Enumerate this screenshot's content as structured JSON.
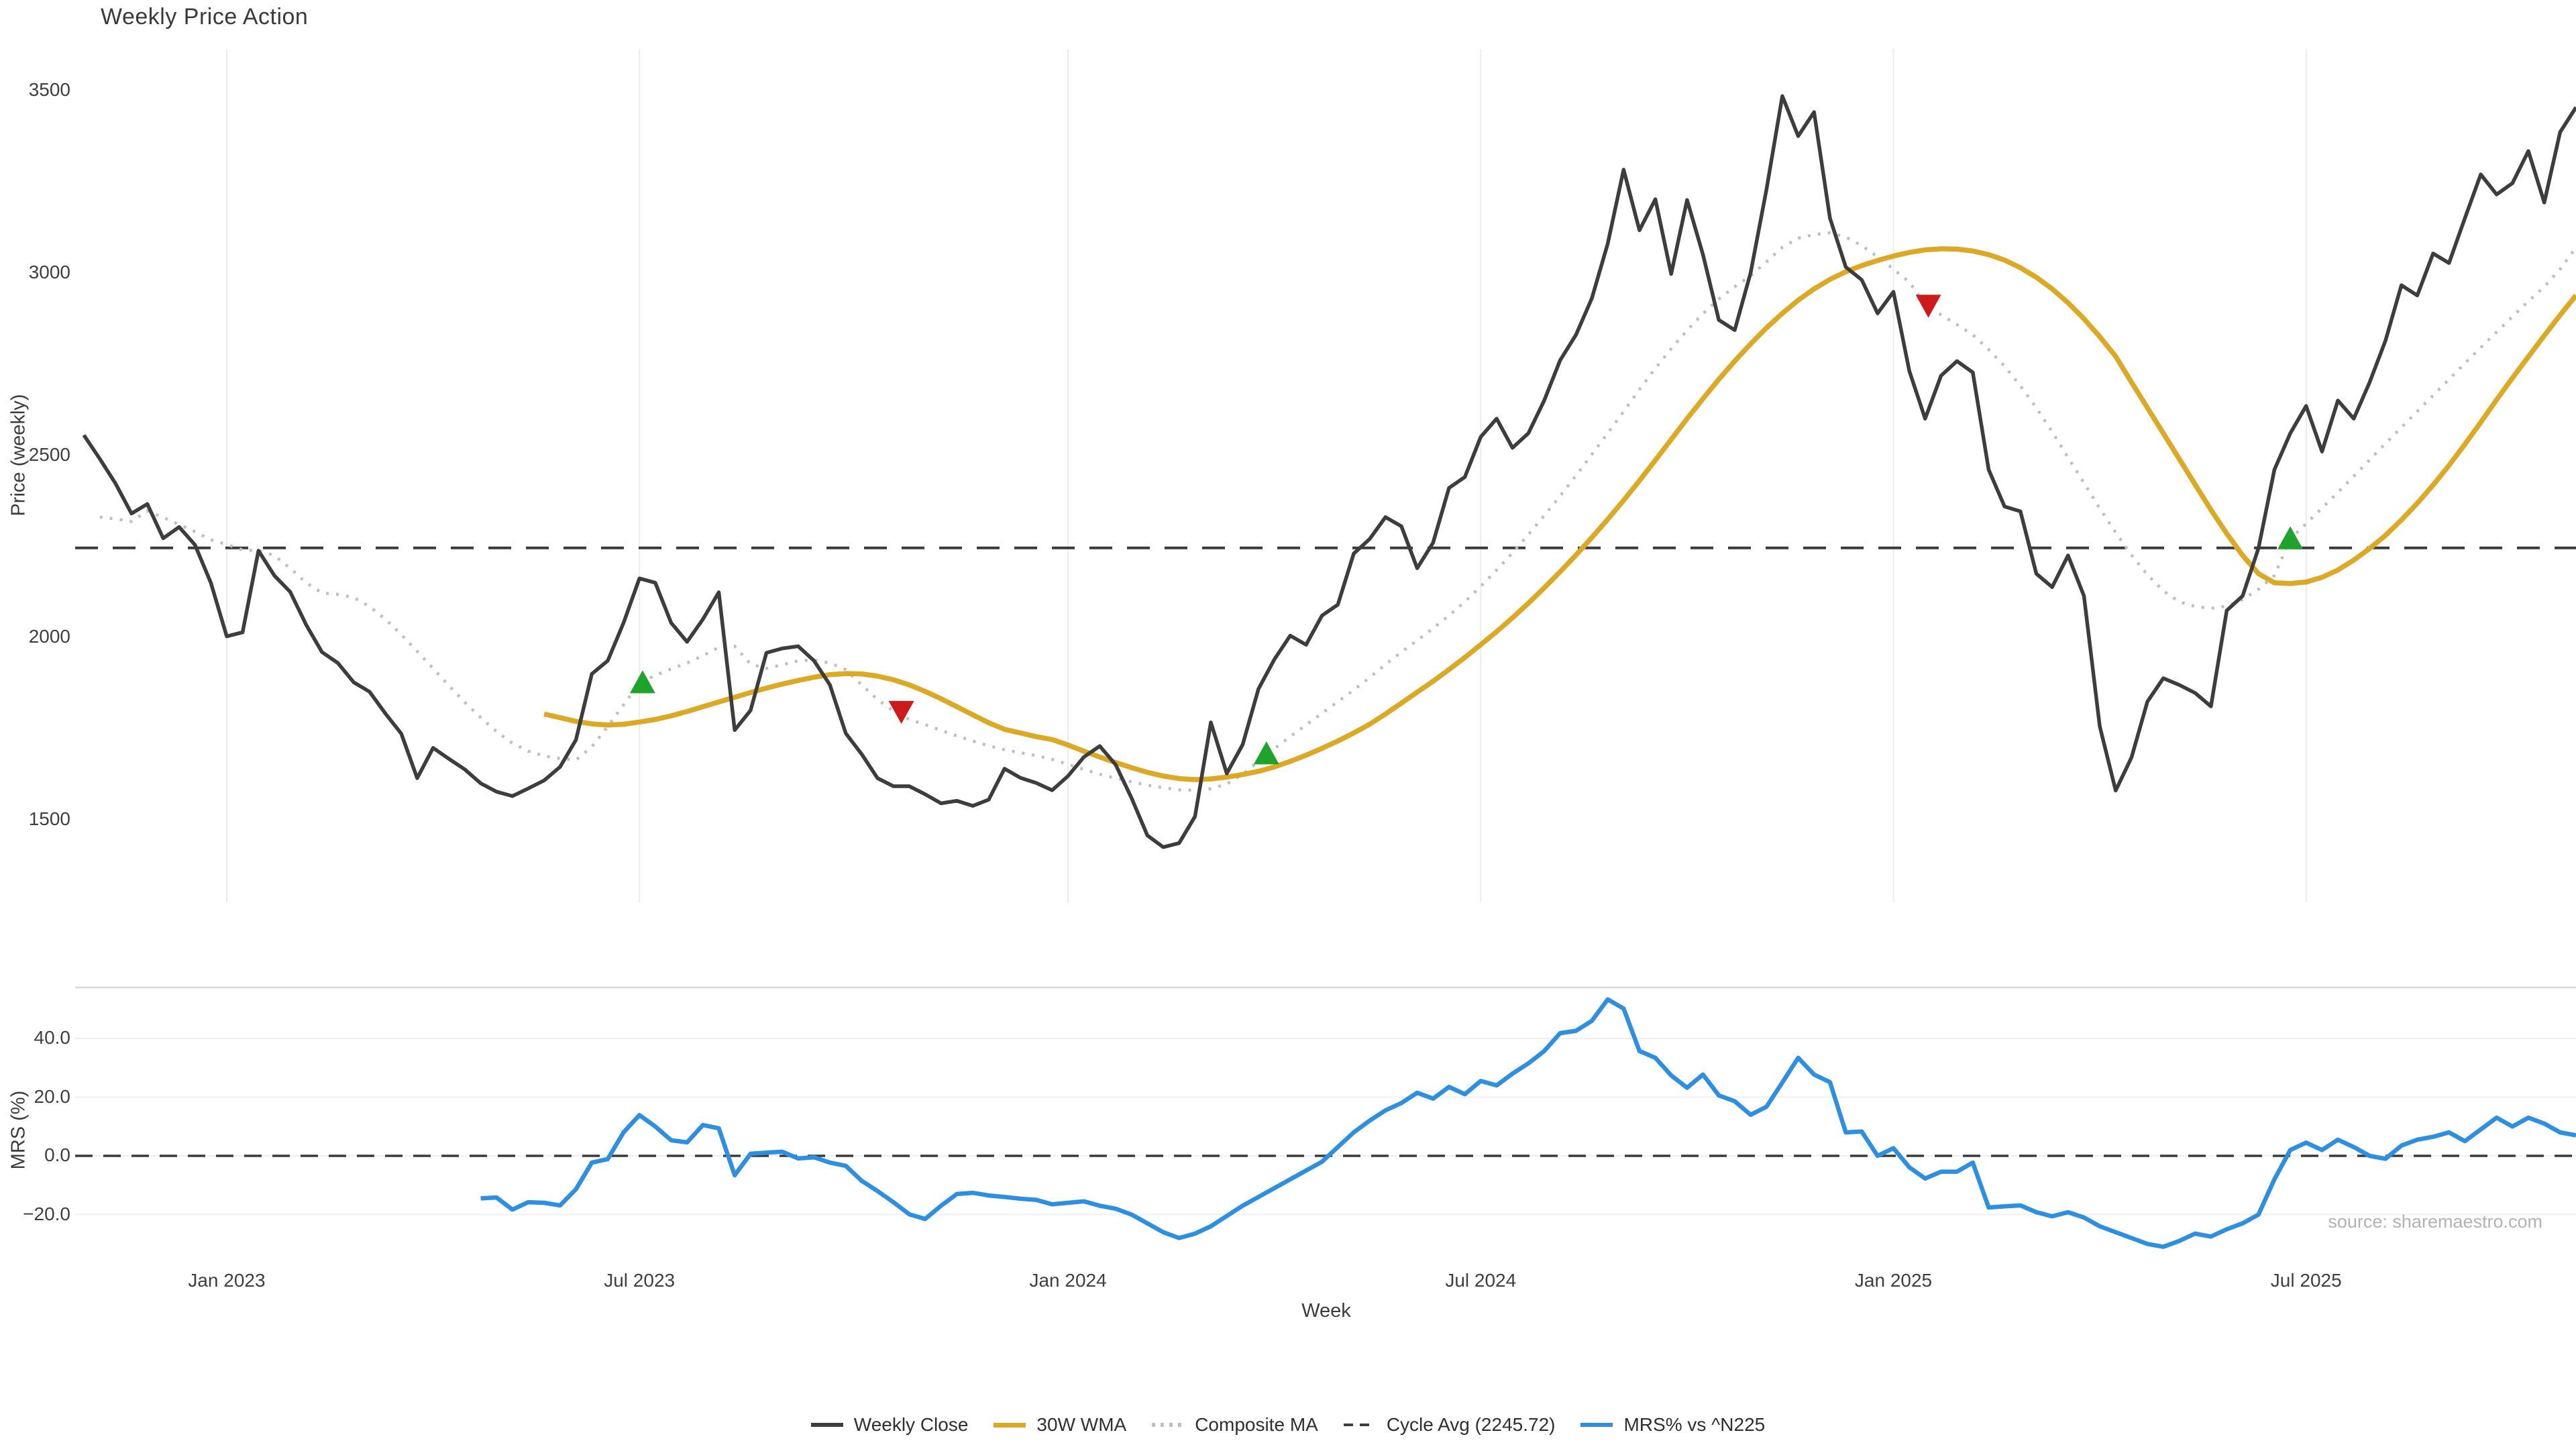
{
  "title": "Weekly Price Action",
  "source": "source: sharemaestro.com",
  "colors": {
    "close": "#3d3d3d",
    "wma30": "#DCA927",
    "composite": "#bfbfbf",
    "cycle_avg": "#3a3a3a",
    "mrs": "#2E8FE0",
    "buy_marker": "#1fa32a",
    "sell_marker": "#cd1a1a",
    "grid_vertical": "#ececec",
    "grid_horizontal": "#efeff2",
    "panel_border": "#d9d9de",
    "text": "#3f3f3f",
    "muted_text": "#b2b2b6"
  },
  "legend": [
    {
      "label": "Weekly Close",
      "color": "#3d3d3d",
      "style": "solid"
    },
    {
      "label": "30W WMA",
      "color": "#DCA927",
      "style": "solid"
    },
    {
      "label": "Composite MA",
      "color": "#bfbfbf",
      "style": "dotted"
    },
    {
      "label": "Cycle Avg (2245.72)",
      "color": "#3d3d3d",
      "style": "dashed"
    },
    {
      "label": "MRS% vs ^N225",
      "color": "#2E8FE0",
      "style": "solid"
    }
  ],
  "chart_data": {
    "type": "line",
    "title": "Weekly Price Action",
    "xlabel": "Week",
    "x_unit": "week_index (weekly data, week 0 ≈ late Oct 2022, week 157 ≈ late Oct 2025)",
    "x_ticks": [
      {
        "label": "Jan 2023",
        "week": 9
      },
      {
        "label": "Jul 2023",
        "week": 35
      },
      {
        "label": "Jan 2024",
        "week": 62
      },
      {
        "label": "Jul 2024",
        "week": 88
      },
      {
        "label": "Jan 2025",
        "week": 114
      },
      {
        "label": "Jul 2025",
        "week": 140
      }
    ],
    "panels": [
      {
        "name": "price",
        "ylabel": "Price (weekly)",
        "y_ticks": [
          1500,
          2000,
          2500,
          3000,
          3500
        ],
        "ylim": [
          1300,
          3610
        ],
        "grid": "vertical",
        "cycle_avg": 2245.72,
        "series": [
          {
            "name": "Weekly Close",
            "color": "#3d3d3d",
            "style": "solid",
            "start_week": 0,
            "values": [
              2555,
              2490,
              2422,
              2340,
              2366,
              2272,
              2303,
              2254,
              2150,
              2003,
              2014,
              2238,
              2170,
              2125,
              2035,
              1960,
              1930,
              1877,
              1851,
              1791,
              1736,
              1614,
              1697,
              1667,
              1638,
              1600,
              1577,
              1565,
              1586,
              1608,
              1645,
              1719,
              1900,
              1936,
              2040,
              2162,
              2150,
              2040,
              1988,
              2050,
              2124,
              1746,
              1800,
              1958,
              1970,
              1976,
              1936,
              1870,
              1737,
              1680,
              1614,
              1592,
              1592,
              1570,
              1545,
              1552,
              1538,
              1555,
              1640,
              1615,
              1601,
              1581,
              1620,
              1672,
              1702,
              1651,
              1560,
              1457,
              1425,
              1436,
              1509,
              1767,
              1627,
              1706,
              1859,
              1940,
              2005,
              1980,
              2060,
              2090,
              2230,
              2270,
              2330,
              2305,
              2190,
              2260,
              2410,
              2440,
              2550,
              2600,
              2520,
              2560,
              2650,
              2760,
              2830,
              2930,
              3080,
              3283,
              3117,
              3202,
              2997,
              3200,
              3050,
              2871,
              2843,
              3000,
              3228,
              3485,
              3375,
              3441,
              3150,
              3016,
              2981,
              2889,
              2948,
              2731,
              2600,
              2718,
              2758,
              2727,
              2460,
              2359,
              2346,
              2175,
              2138,
              2225,
              2114,
              1756,
              1580,
              1671,
              1824,
              1888,
              1870,
              1848,
              1811,
              2074,
              2114,
              2245,
              2460,
              2560,
              2635,
              2510,
              2650,
              2600,
              2700,
              2814,
              2966,
              2938,
              3053,
              3027,
              3150,
              3270,
              3215,
              3246,
              3334,
              3193,
              3386,
              3454
            ]
          },
          {
            "name": "30W WMA",
            "color": "#DCA927",
            "style": "solid",
            "start_week": 29,
            "values": [
              1790,
              1780,
              1770,
              1763,
              1760,
              1762,
              1768,
              1775,
              1785,
              1797,
              1810,
              1823,
              1836,
              1849,
              1861,
              1872,
              1882,
              1891,
              1898,
              1901,
              1900,
              1894,
              1884,
              1870,
              1852,
              1832,
              1810,
              1788,
              1766,
              1748,
              1738,
              1728,
              1720,
              1705,
              1688,
              1672,
              1657,
              1643,
              1630,
              1620,
              1613,
              1610,
              1612,
              1617,
              1624,
              1633,
              1645,
              1660,
              1677,
              1696,
              1716,
              1738,
              1762,
              1790,
              1820,
              1850,
              1880,
              1912,
              1945,
              1980,
              2016,
              2054,
              2094,
              2136,
              2180,
              2226,
              2274,
              2324,
              2376,
              2430,
              2486,
              2543,
              2600,
              2655,
              2708,
              2758,
              2805,
              2849,
              2889,
              2925,
              2956,
              2982,
              3003,
              3020,
              3034,
              3046,
              3056,
              3063,
              3066,
              3065,
              3060,
              3050,
              3035,
              3014,
              2988,
              2956,
              2918,
              2874,
              2825,
              2771,
              2700,
              2630,
              2560,
              2490,
              2420,
              2350,
              2285,
              2225,
              2175,
              2150,
              2148,
              2152,
              2165,
              2185,
              2212,
              2244,
              2280,
              2322,
              2368,
              2418,
              2472,
              2530,
              2590,
              2652,
              2712,
              2770,
              2828,
              2884,
              2938
            ]
          },
          {
            "name": "Composite MA",
            "color": "#bfbfbf",
            "style": "dotted",
            "start_week": 1,
            "values": [
              2330,
              2325,
              2318,
              2347,
              2329,
              2310,
              2290,
              2268,
              2255,
              2240,
              2238,
              2225,
              2190,
              2150,
              2122,
              2118,
              2110,
              2085,
              2050,
              2008,
              1962,
              1915,
              1868,
              1822,
              1780,
              1742,
              1710,
              1688,
              1675,
              1668,
              1664,
              1700,
              1756,
              1815,
              1875,
              1896,
              1914,
              1930,
              1950,
              1973,
              1976,
              1927,
              1915,
              1925,
              1936,
              1938,
              1930,
              1912,
              1870,
              1830,
              1798,
              1775,
              1761,
              1745,
              1730,
              1716,
              1703,
              1692,
              1684,
              1676,
              1666,
              1652,
              1638,
              1625,
              1614,
              1604,
              1595,
              1588,
              1582,
              1581,
              1585,
              1598,
              1625,
              1660,
              1695,
              1728,
              1760,
              1792,
              1824,
              1856,
              1890,
              1926,
              1960,
              1992,
              2025,
              2060,
              2098,
              2140,
              2185,
              2232,
              2282,
              2334,
              2388,
              2444,
              2502,
              2560,
              2620,
              2680,
              2738,
              2792,
              2842,
              2888,
              2928,
              2962,
              2992,
              3030,
              3070,
              3095,
              3105,
              3110,
              3098,
              3075,
              3044,
              3010,
              2975,
              2912,
              2885,
              2858,
              2830,
              2790,
              2744,
              2690,
              2630,
              2564,
              2494,
              2424,
              2354,
              2288,
              2226,
              2172,
              2128,
              2098,
              2085,
              2080,
              2086,
              2104,
              2132,
              2170,
              2270,
              2312,
              2355,
              2398,
              2442,
              2487,
              2532,
              2576,
              2620,
              2664,
              2708,
              2752,
              2795,
              2838,
              2880,
              2922,
              2962,
              3010,
              3070
            ]
          },
          {
            "name": "Cycle Avg",
            "color": "#3a3a3a",
            "style": "dashed",
            "value": 2245.72
          }
        ],
        "markers": [
          {
            "week": 35.2,
            "price": 1875,
            "type": "buy"
          },
          {
            "week": 51.5,
            "price": 1798,
            "type": "sell"
          },
          {
            "week": 74.5,
            "price": 1680,
            "type": "buy"
          },
          {
            "week": 116.2,
            "price": 2912,
            "type": "sell"
          },
          {
            "week": 139.0,
            "price": 2270,
            "type": "buy"
          }
        ]
      },
      {
        "name": "mrs",
        "ylabel": "MRS (%)",
        "y_ticks": [
          -20,
          0,
          20,
          40
        ],
        "ylim": [
          -36,
          57
        ],
        "grid": "horizontal",
        "zero_line": "dashed",
        "series": [
          {
            "name": "MRS% vs ^N225",
            "color": "#2E8FE0",
            "style": "solid",
            "start_week": 25,
            "values": [
              -14.5,
              -14.2,
              -18.3,
              -15.8,
              -16.0,
              -16.9,
              -11.4,
              -2.3,
              -1.1,
              8.0,
              13.9,
              10.0,
              5.3,
              4.6,
              10.5,
              9.4,
              -6.6,
              0.7,
              1.1,
              1.4,
              -0.9,
              -0.5,
              -2.3,
              -3.4,
              -8.5,
              -12.0,
              -15.8,
              -19.9,
              -21.5,
              -17.0,
              -13.0,
              -12.6,
              -13.5,
              -14.0,
              -14.6,
              -15.0,
              -16.5,
              -16.0,
              -15.5,
              -17.0,
              -18.0,
              -20.0,
              -23.0,
              -26.0,
              -28.0,
              -26.5,
              -24.0,
              -20.5,
              -17.0,
              -14.0,
              -11.0,
              -8.0,
              -5.0,
              -2.0,
              3.0,
              8.0,
              12.0,
              15.5,
              18.0,
              21.5,
              19.5,
              23.5,
              21.0,
              25.5,
              24.0,
              28.0,
              31.5,
              35.7,
              41.8,
              42.6,
              46.0,
              53.3,
              50.2,
              35.7,
              33.4,
              27.4,
              23.2,
              27.7,
              20.6,
              18.6,
              14.0,
              16.7,
              25.0,
              33.4,
              27.7,
              25.1,
              8.0,
              8.3,
              0.0,
              2.6,
              -3.9,
              -7.7,
              -5.4,
              -5.4,
              -2.3,
              -17.6,
              -17.2,
              -16.9,
              -19.2,
              -20.6,
              -19.2,
              -21.0,
              -24.0,
              -26.0,
              -28.0,
              -30.0,
              -31.0,
              -29.0,
              -26.5,
              -27.5,
              -25.0,
              -23.0,
              -20.0,
              -8.0,
              2.0,
              4.5,
              2.0,
              5.5,
              3.0,
              0.0,
              -1.0,
              3.5,
              5.5,
              6.5,
              8.0,
              5.0,
              9.0,
              13.0,
              10.0,
              13.0,
              11.0,
              8.0,
              7.0
            ]
          }
        ]
      }
    ],
    "legend_position": "bottom-center",
    "grid": "on (faint)"
  }
}
